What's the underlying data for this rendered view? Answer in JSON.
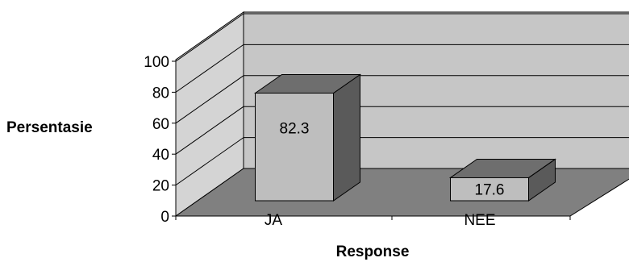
{
  "chart_data": {
    "type": "bar",
    "categories": [
      "JA",
      "NEE"
    ],
    "values": [
      82.3,
      17.6
    ],
    "data_labels": [
      "82.3",
      "17.6"
    ],
    "xlabel": "Response",
    "ylabel": "Persentasie",
    "ylim": [
      0,
      100
    ],
    "yticks": [
      0,
      20,
      40,
      60,
      80,
      100
    ],
    "grid": true,
    "legend": "none",
    "style": "3d",
    "colors": {
      "back_wall": "#c6c6c6",
      "side_wall": "#d4d4d4",
      "floor": "#808080",
      "bar_front": "#bebebe",
      "bar_top": "#6e6e6e",
      "bar_side": "#5a5a5a",
      "line": "#000000"
    }
  }
}
